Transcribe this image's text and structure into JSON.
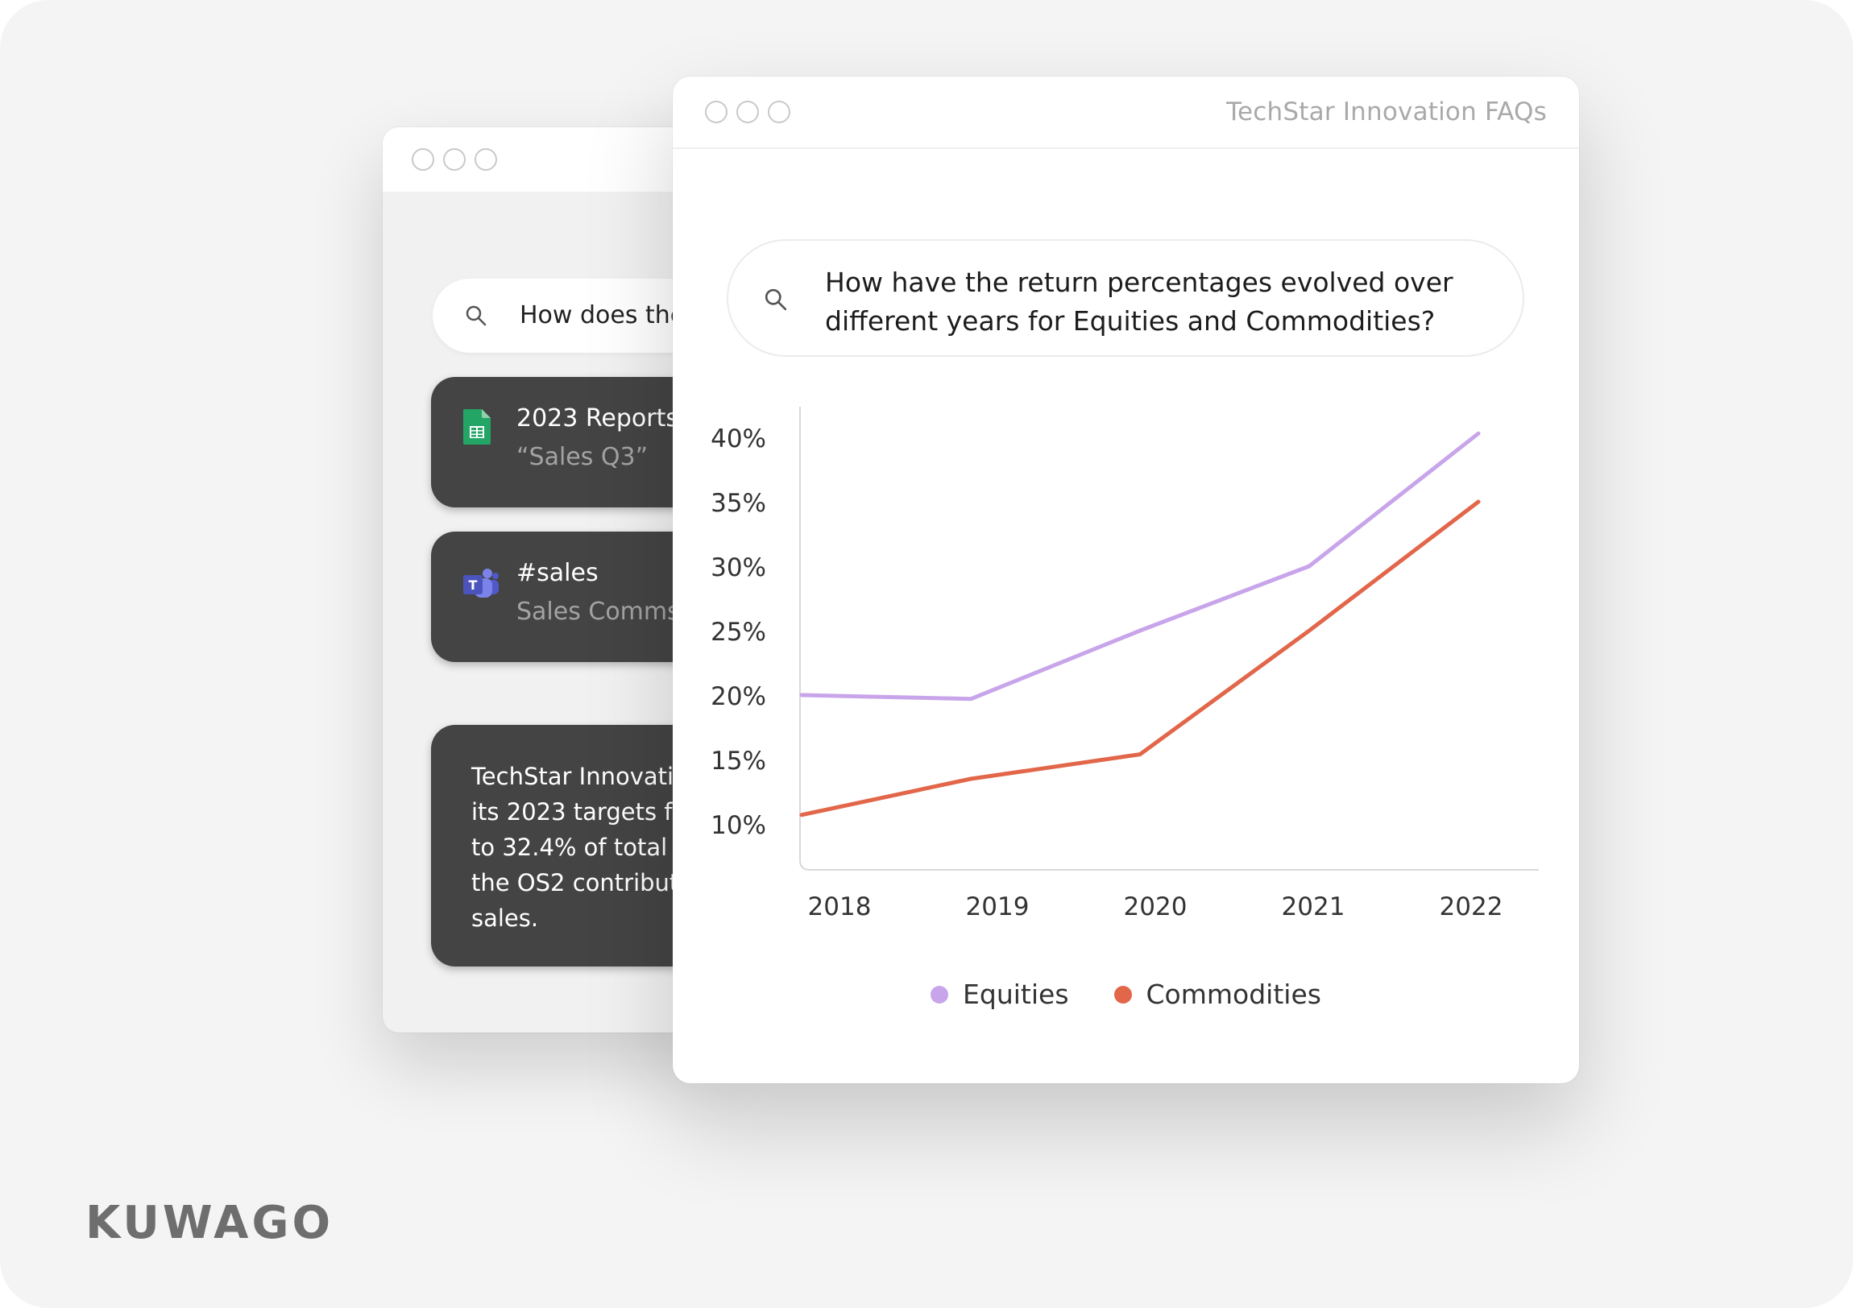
{
  "brand": "KUWAGO",
  "colors": {
    "equities": "#c8a5ea",
    "commodities": "#e2664a",
    "card_bg": "#444444"
  },
  "back_window": {
    "search_text": "How does the",
    "cards": [
      {
        "icon": "google-sheets-icon",
        "title": "2023 Reports",
        "subtitle": "“Sales Q3”"
      },
      {
        "icon": "microsoft-teams-icon",
        "title": "#sales",
        "subtitle": "Sales Comms"
      }
    ],
    "answer_lines": [
      "TechStar Innovati",
      "its 2023 targets f",
      "to 32.4% of total",
      "the OS2 contribut",
      "sales."
    ]
  },
  "front_window": {
    "title": "TechStar Innovation FAQs",
    "question_line1": "How have the return percentages evolved over",
    "question_line2": "different years for Equities and Commodities?"
  },
  "chart_data": {
    "type": "line",
    "title": "",
    "x": [
      "2018",
      "2019",
      "2020",
      "2021",
      "2022"
    ],
    "y_ticks": [
      "40%",
      "35%",
      "30%",
      "25%",
      "20%",
      "15%",
      "10%"
    ],
    "ylim": [
      10,
      40
    ],
    "grid": false,
    "legend": "bottom-center",
    "series": [
      {
        "name": "Equities",
        "values": [
          20,
          19.7,
          25,
          30,
          40.3
        ]
      },
      {
        "name": "Commodities",
        "values": [
          10.7,
          13.5,
          15.4,
          25,
          35
        ]
      }
    ]
  }
}
